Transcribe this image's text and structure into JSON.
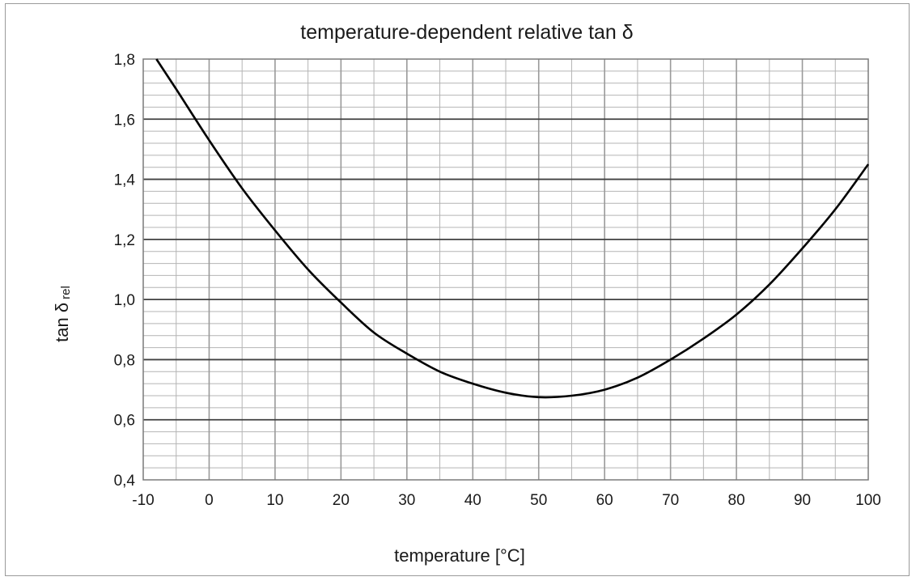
{
  "chart_data": {
    "type": "line",
    "title": "temperature-dependent relative tan δ",
    "xlabel": "temperature [°C]",
    "ylabel_main": "tan δ",
    "ylabel_sub": "rel",
    "xlim": [
      -10,
      100
    ],
    "ylim": [
      0.4,
      1.8
    ],
    "x_major_step": 10,
    "x_minor_step": 5,
    "y_major_step": 0.2,
    "y_minor_step": 0.04,
    "x_tick_labels": [
      "-10",
      "0",
      "10",
      "20",
      "30",
      "40",
      "50",
      "60",
      "70",
      "80",
      "90",
      "100"
    ],
    "y_tick_labels": [
      "0,4",
      "0,6",
      "0,8",
      "1,0",
      "1,2",
      "1,4",
      "1,6",
      "1,8"
    ],
    "grid": true,
    "series": [
      {
        "x": [
          -8,
          -5,
          0,
          5,
          10,
          15,
          20,
          25,
          30,
          35,
          40,
          45,
          50,
          55,
          60,
          65,
          70,
          75,
          80,
          85,
          90,
          95,
          100
        ],
        "values": [
          1.8,
          1.7,
          1.53,
          1.37,
          1.23,
          1.1,
          0.99,
          0.89,
          0.82,
          0.76,
          0.72,
          0.69,
          0.675,
          0.68,
          0.7,
          0.74,
          0.8,
          0.87,
          0.95,
          1.05,
          1.17,
          1.3,
          1.45
        ]
      }
    ],
    "colors": {
      "curve": "#000000",
      "major_grid": "#404040",
      "minor_grid": "#b4b4b4",
      "vertical_grid": "#9a9a9a"
    }
  }
}
